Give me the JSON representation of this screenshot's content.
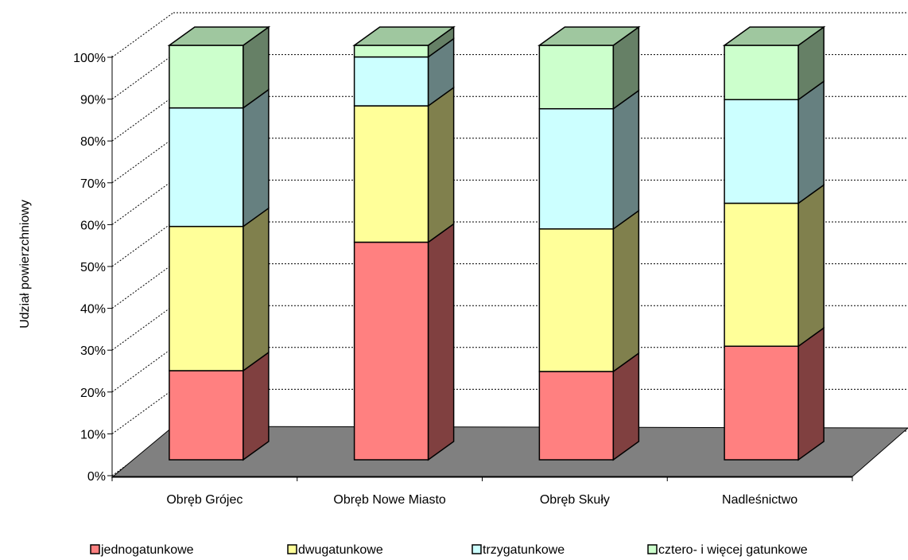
{
  "chart_data": {
    "type": "bar",
    "stacked": "percent",
    "style": "3d",
    "title": "",
    "xlabel": "",
    "ylabel": "Udział powierzchniowy",
    "ylim": [
      0,
      100
    ],
    "y_ticks": [
      "0%",
      "10%",
      "20%",
      "30%",
      "40%",
      "50%",
      "60%",
      "70%",
      "80%",
      "90%",
      "100%"
    ],
    "grid": true,
    "legend_position": "bottom",
    "categories": [
      "Obręb Grójec",
      "Obręb Nowe Miasto",
      "Obręb Skuły",
      "Nadleśnictwo"
    ],
    "series": [
      {
        "name": "jednogatunkowe",
        "color": "#ff8080",
        "values": [
          21.5,
          52.5,
          21.3,
          27.4
        ]
      },
      {
        "name": "dwugatunkowe",
        "color": "#ffff99",
        "values": [
          34.8,
          32.9,
          34.4,
          34.5
        ]
      },
      {
        "name": "trzygatunkowe",
        "color": "#ccffff",
        "values": [
          28.6,
          11.8,
          29.0,
          25.0
        ]
      },
      {
        "name": "cztero- i więcej gatunkowe",
        "color": "#ccffcc",
        "values": [
          15.1,
          2.8,
          15.3,
          13.1
        ]
      }
    ]
  }
}
